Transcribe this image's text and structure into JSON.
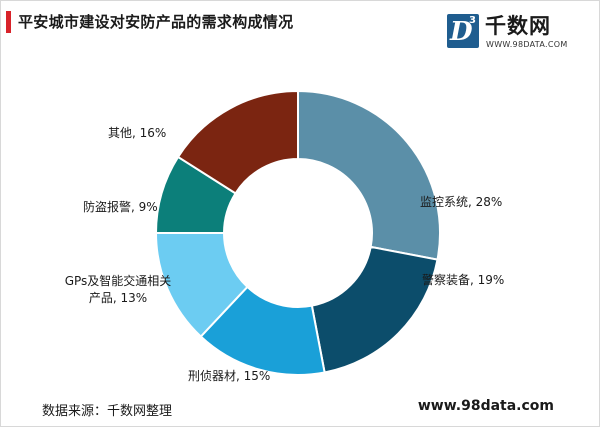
{
  "title": "平安城市建设对安防产品的需求构成情况",
  "logo": {
    "mark_letter": "D",
    "mark_sup": "3",
    "name": "千数网",
    "url": "WWW.98DATA.COM"
  },
  "footer": {
    "source": "数据来源：千数网整理",
    "site": "www.98data.com"
  },
  "colors": {
    "accent": "#d8232a",
    "slices": [
      "#5b8fa8",
      "#0c4d6b",
      "#1aa0d8",
      "#6cccf2",
      "#0c7f7a",
      "#7b2511"
    ]
  },
  "chart_data": {
    "type": "pie",
    "donut": true,
    "title": "平安城市建设对安防产品的需求构成情况",
    "categories": [
      "监控系统",
      "警察装备",
      "刑侦器材",
      "GPs及智能交通相关产品",
      "防盗报警",
      "其他"
    ],
    "values": [
      28,
      19,
      15,
      13,
      9,
      16
    ],
    "unit": "%",
    "labels": [
      [
        "监控系统, 28%"
      ],
      [
        "警察装备, 19%"
      ],
      [
        "刑侦器材, 15%"
      ],
      [
        "GPs及智能交通相关",
        "产品, 13%"
      ],
      [
        "防盗报警, 9%"
      ],
      [
        "其他, 16%"
      ]
    ]
  }
}
